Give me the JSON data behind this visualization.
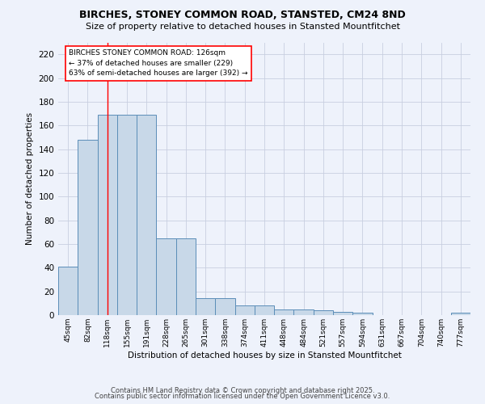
{
  "title": "BIRCHES, STONEY COMMON ROAD, STANSTED, CM24 8ND",
  "subtitle": "Size of property relative to detached houses in Stansted Mountfitchet",
  "xlabel": "Distribution of detached houses by size in Stansted Mountfitchet",
  "ylabel": "Number of detached properties",
  "bar_values": [
    41,
    148,
    169,
    169,
    169,
    65,
    65,
    14,
    14,
    8,
    8,
    5,
    5,
    4,
    3,
    2,
    0,
    0,
    0,
    0,
    2
  ],
  "bin_labels": [
    "45sqm",
    "82sqm",
    "118sqm",
    "155sqm",
    "191sqm",
    "228sqm",
    "265sqm",
    "301sqm",
    "338sqm",
    "374sqm",
    "411sqm",
    "448sqm",
    "484sqm",
    "521sqm",
    "557sqm",
    "594sqm",
    "631sqm",
    "667sqm",
    "704sqm",
    "740sqm",
    "777sqm"
  ],
  "bar_color": "#c8d8e8",
  "bar_edge_color": "#5b8db8",
  "red_line_bin": 2,
  "annotation_text": "BIRCHES STONEY COMMON ROAD: 126sqm\n← 37% of detached houses are smaller (229)\n63% of semi-detached houses are larger (392) →",
  "annotation_box_facecolor": "white",
  "annotation_box_edgecolor": "red",
  "ylim": [
    0,
    230
  ],
  "yticks": [
    0,
    20,
    40,
    60,
    80,
    100,
    120,
    140,
    160,
    180,
    200,
    220
  ],
  "footer_line1": "Contains HM Land Registry data © Crown copyright and database right 2025.",
  "footer_line2": "Contains public sector information licensed under the Open Government Licence v3.0.",
  "bg_color": "#eef2fb",
  "grid_color": "#c8cfe0"
}
